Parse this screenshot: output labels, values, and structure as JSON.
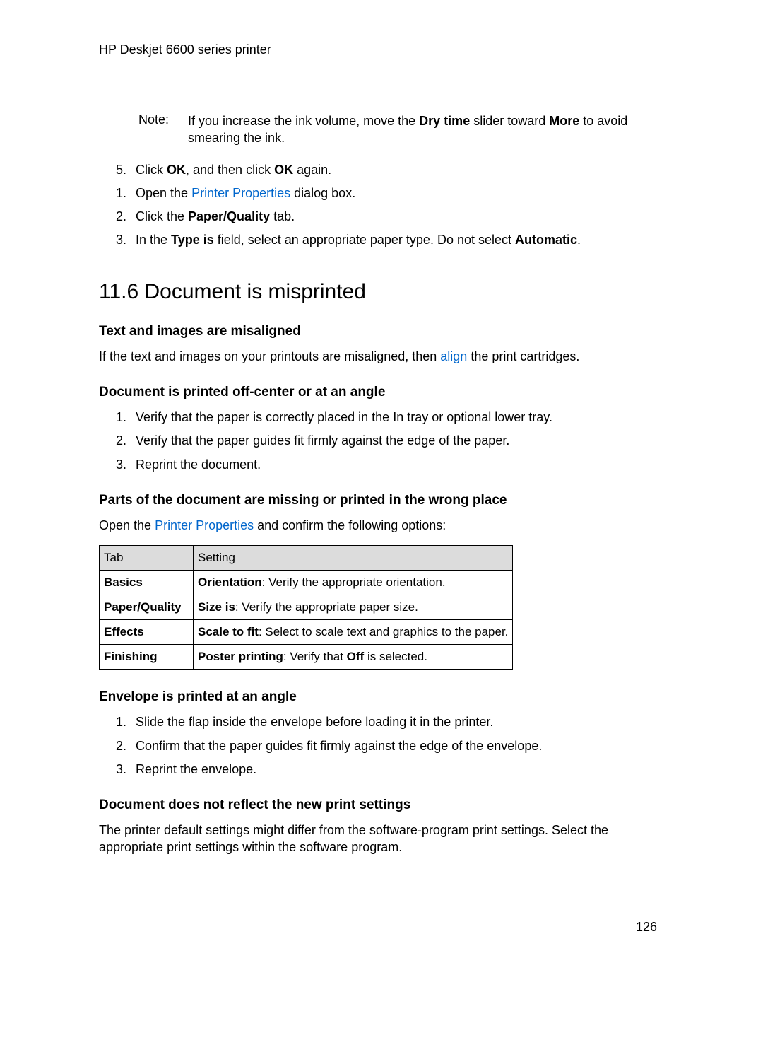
{
  "header": "HP Deskjet 6600 series printer",
  "note": {
    "label": "Note:",
    "text_pre": "If you increase the ink volume, move the ",
    "bold1": "Dry time",
    "text_mid": " slider toward ",
    "bold2": "More",
    "text_post": " to avoid smearing the ink."
  },
  "list1": [
    {
      "n": "5.",
      "pre": "Click ",
      "b1": "OK",
      "mid": ", and then click ",
      "b2": "OK",
      "post": " again."
    },
    {
      "n": "1.",
      "pre": "Open the ",
      "link": "Printer Properties",
      "post": " dialog box."
    },
    {
      "n": "2.",
      "pre": "Click the ",
      "b1": "Paper/Quality",
      "post": " tab."
    },
    {
      "n": "3.",
      "pre": "In the ",
      "b1": "Type is",
      "mid": " field, select an appropriate paper type. Do not select ",
      "b2": "Automatic",
      "post": "."
    }
  ],
  "section_title": "11.6  Document is misprinted",
  "sub1": {
    "title": "Text and images are misaligned",
    "text_pre": "If the text and images on your printouts are misaligned, then ",
    "link": "align",
    "text_post": " the print cartridges."
  },
  "sub2": {
    "title": "Document is printed off-center or at an angle",
    "items": [
      {
        "n": "1.",
        "t": "Verify that the paper is correctly placed in the In tray or optional lower tray."
      },
      {
        "n": "2.",
        "t": "Verify that the paper guides fit firmly against the edge of the paper."
      },
      {
        "n": "3.",
        "t": "Reprint the document."
      }
    ]
  },
  "sub3": {
    "title": "Parts of the document are missing or printed in the wrong place",
    "text_pre": "Open the ",
    "link": "Printer Properties",
    "text_post": " and confirm the following options:"
  },
  "table": {
    "head": {
      "c1": "Tab",
      "c2": "Setting"
    },
    "rows": [
      {
        "c1": "Basics",
        "b": "Orientation",
        "t": ": Verify the appropriate orientation."
      },
      {
        "c1": "Paper/Quality",
        "b": "Size is",
        "t": ": Verify the appropriate paper size."
      },
      {
        "c1": "Effects",
        "b": "Scale to fit",
        "t": ": Select to scale text and graphics to the paper."
      },
      {
        "c1": "Finishing",
        "b": "Poster printing",
        "t": ": Verify that ",
        "b2": "Off",
        "t2": " is selected."
      }
    ]
  },
  "sub4": {
    "title": "Envelope is printed at an angle",
    "items": [
      {
        "n": "1.",
        "t": "Slide the flap inside the envelope before loading it in the printer."
      },
      {
        "n": "2.",
        "t": "Confirm that the paper guides fit firmly against the edge of the envelope."
      },
      {
        "n": "3.",
        "t": "Reprint the envelope."
      }
    ]
  },
  "sub5": {
    "title": "Document does not reflect the new print settings",
    "text": "The printer default settings might differ from the software-program print settings. Select the appropriate print settings within the software program."
  },
  "page_number": "126"
}
